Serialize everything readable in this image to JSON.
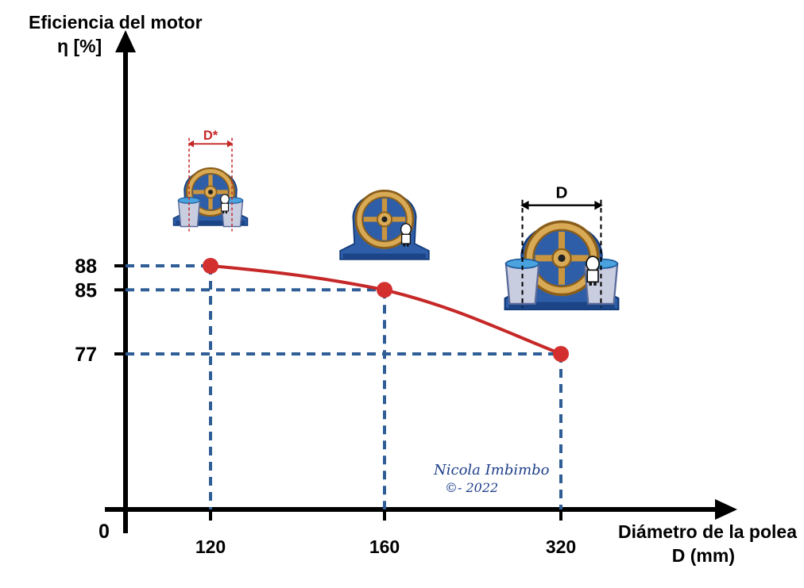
{
  "chart_data": {
    "type": "line",
    "ylabel_line1": "Eficiencia del motor",
    "ylabel_line2": "η [%]",
    "xlabel_line1": "Diámetro de la polea",
    "xlabel_line2": "D (mm)",
    "origin_label": "0",
    "categories": [
      "120",
      "160",
      "320"
    ],
    "values": [
      88,
      85,
      77
    ],
    "y_ticks": [
      "88",
      "85",
      "77"
    ],
    "x_scale": "categorical, unevenly spaced",
    "grid": false,
    "guide_lines": "dashed",
    "colors": {
      "line": "#c62828",
      "points": "#d32f2f",
      "guides": "#2f5d95",
      "axes": "#000000"
    }
  },
  "illustrations": {
    "small_motor": {
      "dimension_label": "D*",
      "icon": "motor-with-pulley-and-buckets-icon",
      "accent": "#c62828"
    },
    "medium_motor": {
      "icon": "motor-with-pulley-icon"
    },
    "large_motor": {
      "dimension_label": "D",
      "icon": "motor-with-pulley-and-buckets-icon",
      "accent": "#000000"
    }
  },
  "signature": {
    "name": "Nicola Imbimbo",
    "copyright": "©- 2022"
  }
}
